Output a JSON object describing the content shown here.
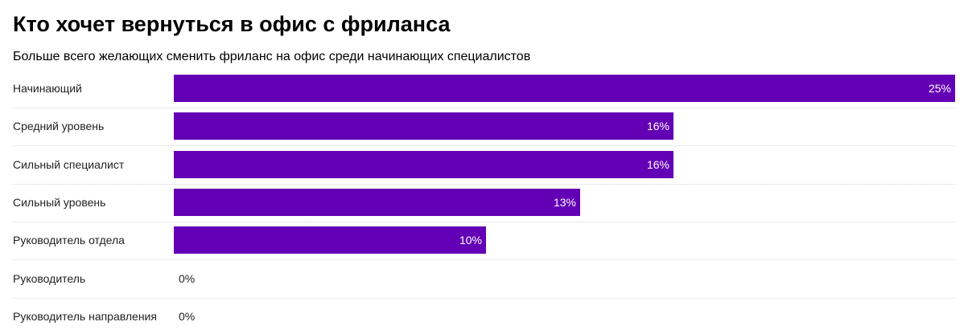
{
  "header": {
    "title": "Кто хочет вернуться в офис с фриланса",
    "subtitle": "Больше всего желающих сменить фриланс на офис среди начинающих специалистов"
  },
  "chart_data": {
    "type": "bar",
    "orientation": "horizontal",
    "title": "Кто хочет вернуться в офис с фриланса",
    "subtitle": "Больше всего желающих сменить фриланс на офис среди начинающих специалистов",
    "categories": [
      "Начинающий",
      "Средний уровень",
      "Сильный специалист",
      "Сильный уровень",
      "Руководитель отдела",
      "Руководитель",
      "Руководитель направления"
    ],
    "values": [
      25,
      16,
      16,
      13,
      10,
      0,
      0
    ],
    "value_labels": [
      "25%",
      "16%",
      "16%",
      "13%",
      "10%",
      "0%",
      "0%"
    ],
    "unit": "%",
    "xlim": [
      0,
      25
    ],
    "bar_color": "#6300b5",
    "grid": false,
    "legend": "none"
  }
}
